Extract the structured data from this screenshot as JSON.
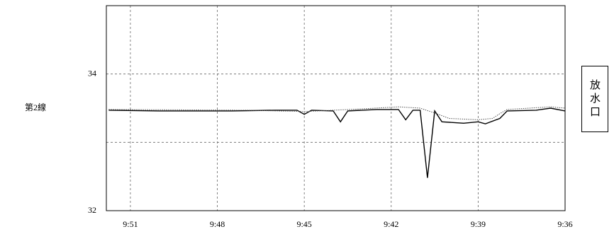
{
  "chart_data": {
    "type": "line",
    "ylabel": "第2線",
    "annotation": "放水口",
    "xlim": [
      51.83,
      36
    ],
    "xticks": [
      {
        "value": 51,
        "label": "9:51"
      },
      {
        "value": 48,
        "label": "9:48"
      },
      {
        "value": 45,
        "label": "9:45"
      },
      {
        "value": 42,
        "label": "9:42"
      },
      {
        "value": 39,
        "label": "9:39"
      },
      {
        "value": 36,
        "label": "9:36"
      }
    ],
    "ylim": [
      32,
      35
    ],
    "yticks": [
      32,
      {
        "value": 33,
        "label": null
      },
      34
    ],
    "grid": true,
    "series": [
      {
        "color": "#000000",
        "style": "solid",
        "x": [
          51.75,
          50,
          47.5,
          46,
          45.25,
          45,
          44.75,
          44,
          43.75,
          43.5,
          42.5,
          41.75,
          41.5,
          41.25,
          41,
          40.75,
          40.5,
          40.25,
          39.5,
          39,
          38.75,
          38.25,
          38,
          37,
          36.5,
          36
        ],
        "values": [
          33.47,
          33.46,
          33.46,
          33.47,
          33.47,
          33.41,
          33.47,
          33.46,
          33.3,
          33.46,
          33.48,
          33.48,
          33.33,
          33.47,
          33.47,
          32.48,
          33.46,
          33.3,
          33.28,
          33.3,
          33.27,
          33.35,
          33.46,
          33.47,
          33.5,
          33.46
        ]
      },
      {
        "color": "#555555",
        "style": "dotted",
        "x": [
          51.75,
          47,
          45,
          43,
          41.75,
          41,
          40.5,
          40,
          39,
          38.5,
          38.25,
          38,
          36.5,
          36
        ],
        "values": [
          33.48,
          33.47,
          33.45,
          33.49,
          33.52,
          33.5,
          33.43,
          33.35,
          33.33,
          33.35,
          33.42,
          33.48,
          33.52,
          33.5
        ]
      }
    ]
  }
}
